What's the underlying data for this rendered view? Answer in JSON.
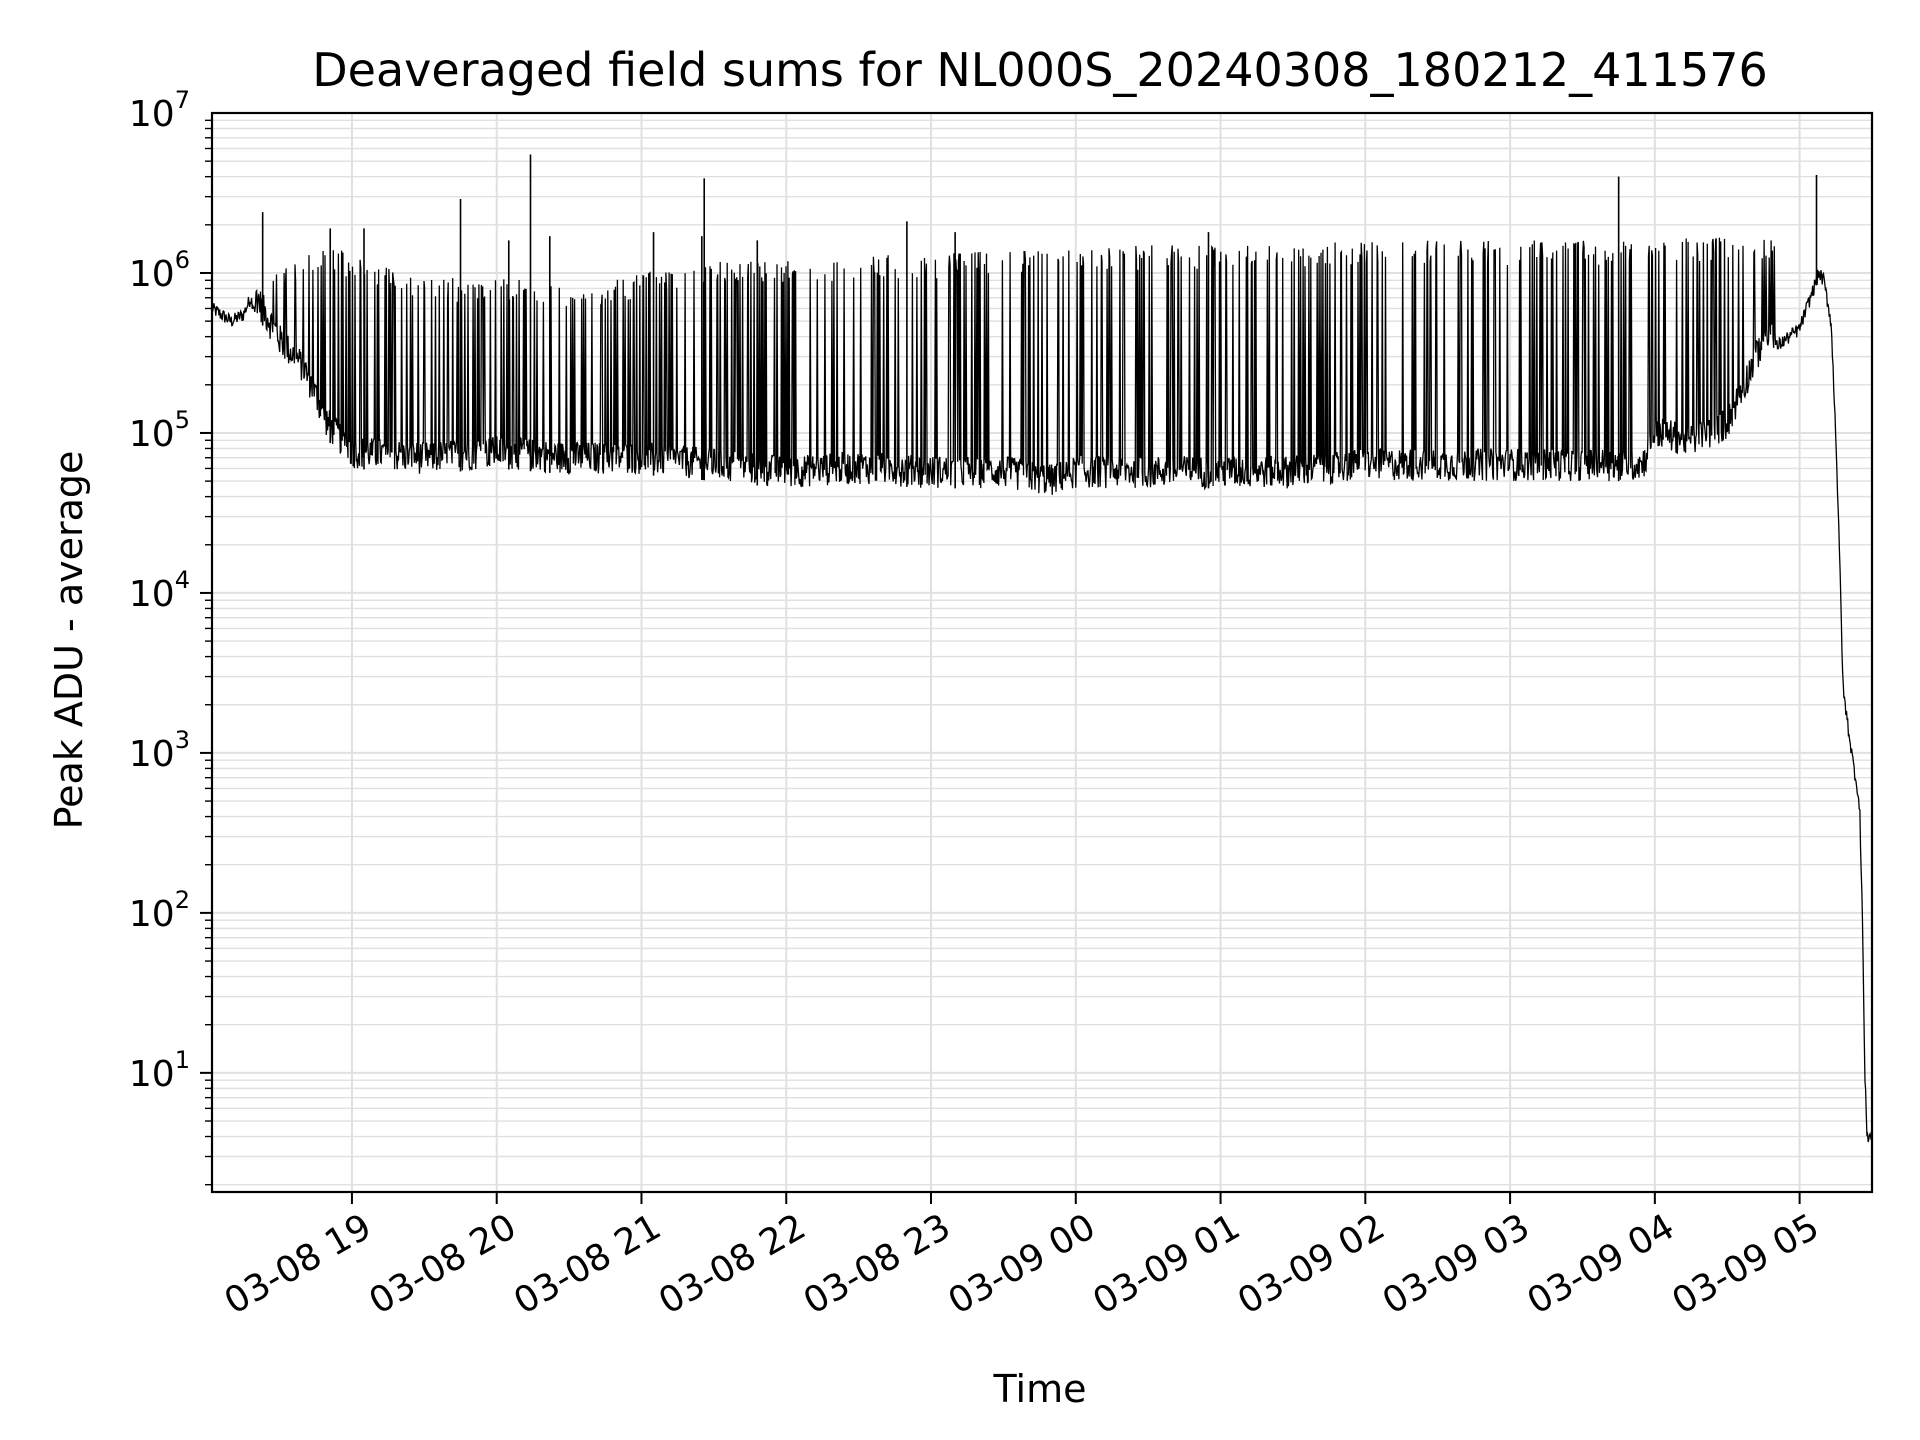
{
  "chart_data": {
    "type": "line",
    "title": "Deaveraged field sums for NL000S_20240308_180212_411576",
    "xlabel": "Time",
    "ylabel": "Peak ADU - average",
    "yscale": "log",
    "ylim": [
      1.8,
      10000000
    ],
    "xlim": [
      "2024-03-08 18:02",
      "2024-03-09 05:30"
    ],
    "grid": true,
    "grid_color": "#e0e0e0",
    "line_color": "#000000",
    "x_ticks": [
      {
        "t": "2024-03-08 19:00",
        "label": "03-08 19"
      },
      {
        "t": "2024-03-08 20:00",
        "label": "03-08 20"
      },
      {
        "t": "2024-03-08 21:00",
        "label": "03-08 21"
      },
      {
        "t": "2024-03-08 22:00",
        "label": "03-08 22"
      },
      {
        "t": "2024-03-08 23:00",
        "label": "03-08 23"
      },
      {
        "t": "2024-03-09 00:00",
        "label": "03-09 00"
      },
      {
        "t": "2024-03-09 01:00",
        "label": "03-09 01"
      },
      {
        "t": "2024-03-09 02:00",
        "label": "03-09 02"
      },
      {
        "t": "2024-03-09 03:00",
        "label": "03-09 03"
      },
      {
        "t": "2024-03-09 04:00",
        "label": "03-09 04"
      },
      {
        "t": "2024-03-09 05:00",
        "label": "03-09 05"
      }
    ],
    "y_ticks": [
      {
        "value": 10,
        "base": "10",
        "exp": "1"
      },
      {
        "value": 100,
        "base": "10",
        "exp": "2"
      },
      {
        "value": 1000,
        "base": "10",
        "exp": "3"
      },
      {
        "value": 10000,
        "base": "10",
        "exp": "4"
      },
      {
        "value": 100000,
        "base": "10",
        "exp": "5"
      },
      {
        "value": 1000000,
        "base": "10",
        "exp": "6"
      },
      {
        "value": 10000000,
        "base": "10",
        "exp": "7"
      }
    ],
    "series": [
      {
        "lower_envelope": [
          [
            "2024-03-08 18:02",
            600000
          ],
          [
            "2024-03-08 18:10",
            500000
          ],
          [
            "2024-03-08 18:15",
            550000
          ],
          [
            "2024-03-08 18:18",
            700000
          ],
          [
            "2024-03-08 18:22",
            500000
          ],
          [
            "2024-03-08 18:30",
            300000
          ],
          [
            "2024-03-08 18:40",
            200000
          ],
          [
            "2024-03-08 18:50",
            90000
          ],
          [
            "2024-03-08 19:00",
            60000
          ],
          [
            "2024-03-08 19:30",
            55000
          ],
          [
            "2024-03-08 20:00",
            60000
          ],
          [
            "2024-03-08 20:30",
            55000
          ],
          [
            "2024-03-08 21:00",
            55000
          ],
          [
            "2024-03-08 21:30",
            50000
          ],
          [
            "2024-03-08 22:00",
            45000
          ],
          [
            "2024-03-08 22:30",
            48000
          ],
          [
            "2024-03-08 23:00",
            45000
          ],
          [
            "2024-03-08 23:30",
            45000
          ],
          [
            "2024-03-08 23:50",
            40000
          ],
          [
            "2024-03-09 00:00",
            45000
          ],
          [
            "2024-03-09 00:30",
            45000
          ],
          [
            "2024-03-09 01:00",
            45000
          ],
          [
            "2024-03-09 01:30",
            45000
          ],
          [
            "2024-03-09 02:00",
            50000
          ],
          [
            "2024-03-09 02:30",
            50000
          ],
          [
            "2024-03-09 03:00",
            50000
          ],
          [
            "2024-03-09 03:30",
            50000
          ],
          [
            "2024-03-09 03:55",
            50000
          ],
          [
            "2024-03-09 04:00",
            80000
          ],
          [
            "2024-03-09 04:15",
            70000
          ],
          [
            "2024-03-09 04:30",
            90000
          ],
          [
            "2024-03-09 04:45",
            300000
          ],
          [
            "2024-03-09 05:00",
            450000
          ],
          [
            "2024-03-09 05:08",
            1000000
          ],
          [
            "2024-03-09 05:10",
            900000
          ],
          [
            "2024-03-09 05:13",
            500000
          ],
          [
            "2024-03-09 05:15",
            100000
          ],
          [
            "2024-03-09 05:17",
            10000
          ],
          [
            "2024-03-09 05:18",
            2500
          ],
          [
            "2024-03-09 05:20",
            1500
          ],
          [
            "2024-03-09 05:22",
            900
          ],
          [
            "2024-03-09 05:24",
            600
          ],
          [
            "2024-03-09 05:25",
            400
          ],
          [
            "2024-03-09 05:26",
            100
          ],
          [
            "2024-03-09 05:27",
            10
          ],
          [
            "2024-03-09 05:28",
            4
          ],
          [
            "2024-03-09 05:30",
            4
          ]
        ],
        "upper_envelope": [
          [
            "2024-03-08 18:20",
            1300000
          ],
          [
            "2024-03-08 18:30",
            1100000
          ],
          [
            "2024-03-08 18:50",
            1500000
          ],
          [
            "2024-03-08 19:00",
            1300000
          ],
          [
            "2024-03-08 19:30",
            900000
          ],
          [
            "2024-03-08 20:00",
            1000000
          ],
          [
            "2024-03-08 20:30",
            800000
          ],
          [
            "2024-03-08 21:00",
            1000000
          ],
          [
            "2024-03-08 21:30",
            1200000
          ],
          [
            "2024-03-08 22:00",
            1200000
          ],
          [
            "2024-03-08 22:30",
            1300000
          ],
          [
            "2024-03-08 23:00",
            1300000
          ],
          [
            "2024-03-08 23:30",
            1400000
          ],
          [
            "2024-03-09 00:00",
            1400000
          ],
          [
            "2024-03-09 00:30",
            1500000
          ],
          [
            "2024-03-09 01:00",
            1500000
          ],
          [
            "2024-03-09 01:30",
            1500000
          ],
          [
            "2024-03-09 02:00",
            1600000
          ],
          [
            "2024-03-09 02:30",
            1600000
          ],
          [
            "2024-03-09 03:00",
            1600000
          ],
          [
            "2024-03-09 03:30",
            1600000
          ],
          [
            "2024-03-09 04:00",
            1600000
          ],
          [
            "2024-03-09 04:30",
            1700000
          ],
          [
            "2024-03-09 04:50",
            1600000
          ]
        ],
        "spikes": [
          [
            "2024-03-08 18:23",
            2400000
          ],
          [
            "2024-03-08 18:51",
            1900000
          ],
          [
            "2024-03-08 19:05",
            1900000
          ],
          [
            "2024-03-08 19:45",
            2900000
          ],
          [
            "2024-03-08 20:05",
            1600000
          ],
          [
            "2024-03-08 20:14",
            5500000
          ],
          [
            "2024-03-08 20:22",
            1700000
          ],
          [
            "2024-03-08 21:05",
            1800000
          ],
          [
            "2024-03-08 21:25",
            1700000
          ],
          [
            "2024-03-08 21:26",
            3900000
          ],
          [
            "2024-03-08 21:48",
            1600000
          ],
          [
            "2024-03-08 22:50",
            2100000
          ],
          [
            "2024-03-08 23:10",
            1800000
          ],
          [
            "2024-03-09 00:55",
            1800000
          ],
          [
            "2024-03-09 03:45",
            4000000
          ],
          [
            "2024-03-09 05:07",
            4100000
          ]
        ]
      }
    ]
  }
}
